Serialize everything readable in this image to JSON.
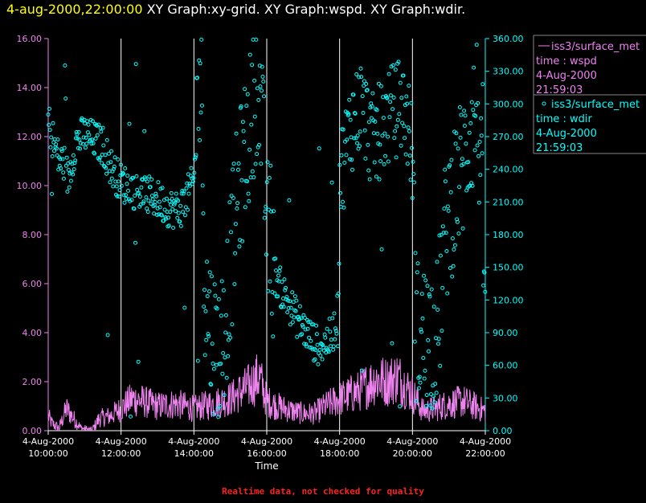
{
  "header": {
    "timestamp": "4-aug-2000,22:00:00",
    "titles": "XY Graph:xy-grid.  XY Graph:wspd.  XY Graph:wdir."
  },
  "footer": {
    "note": "Realtime data, not checked for quality"
  },
  "colors": {
    "wspd": "#ee82ee",
    "wdir": "#00ffff",
    "grid": "#ffffff",
    "header": "#ffff00",
    "note": "#ff2020"
  },
  "chart_data": {
    "type": "line",
    "xlabel": "Time",
    "x_range_hours": [
      10,
      22
    ],
    "x_ticks": [
      {
        "hour": 10,
        "date": "4-Aug-2000",
        "time": "10:00:00"
      },
      {
        "hour": 12,
        "date": "4-Aug-2000",
        "time": "12:00:00"
      },
      {
        "hour": 14,
        "date": "4-Aug-2000",
        "time": "14:00:00"
      },
      {
        "hour": 16,
        "date": "4-Aug-2000",
        "time": "16:00:00"
      },
      {
        "hour": 18,
        "date": "4-Aug-2000",
        "time": "18:00:00"
      },
      {
        "hour": 20,
        "date": "4-Aug-2000",
        "time": "20:00:00"
      },
      {
        "hour": 22,
        "date": "4-Aug-2000",
        "time": "22:00:00"
      }
    ],
    "left_axis": {
      "range": [
        0,
        16
      ],
      "ticks": [
        "0.00",
        "2.00",
        "4.00",
        "6.00",
        "8.00",
        "10.00",
        "12.00",
        "14.00",
        "16.00"
      ]
    },
    "right_axis": {
      "range": [
        0,
        360
      ],
      "ticks": [
        "0.00",
        "30.00",
        "60.00",
        "90.00",
        "120.00",
        "150.00",
        "180.00",
        "210.00",
        "240.00",
        "270.00",
        "300.00",
        "330.00",
        "360.00"
      ]
    },
    "series": [
      {
        "name": "wspd",
        "legend": [
          "iss3/surface_met",
          "time : wspd",
          "4-Aug-2000",
          "21:59:03"
        ],
        "style": "line",
        "axis": "left",
        "keypoints": [
          [
            10.0,
            0.6
          ],
          [
            10.1,
            0.3
          ],
          [
            10.3,
            0.1
          ],
          [
            10.5,
            0.9
          ],
          [
            10.7,
            0.5
          ],
          [
            10.9,
            0.1
          ],
          [
            11.2,
            0.0
          ],
          [
            11.4,
            0.5
          ],
          [
            11.7,
            0.6
          ],
          [
            12.0,
            0.9
          ],
          [
            12.3,
            1.3
          ],
          [
            12.6,
            1.2
          ],
          [
            13.0,
            1.0
          ],
          [
            13.5,
            1.1
          ],
          [
            14.0,
            0.9
          ],
          [
            14.5,
            1.1
          ],
          [
            15.0,
            1.3
          ],
          [
            15.5,
            1.8
          ],
          [
            15.8,
            2.2
          ],
          [
            16.0,
            1.2
          ],
          [
            16.3,
            1.0
          ],
          [
            16.7,
            0.8
          ],
          [
            17.0,
            0.7
          ],
          [
            17.3,
            0.7
          ],
          [
            17.6,
            1.0
          ],
          [
            18.0,
            1.3
          ],
          [
            18.5,
            1.6
          ],
          [
            19.0,
            2.1
          ],
          [
            19.3,
            2.0
          ],
          [
            19.6,
            2.2
          ],
          [
            20.0,
            1.5
          ],
          [
            20.3,
            0.8
          ],
          [
            20.6,
            0.9
          ],
          [
            21.0,
            1.1
          ],
          [
            21.4,
            1.2
          ],
          [
            21.7,
            1.0
          ],
          [
            22.0,
            0.8
          ]
        ]
      },
      {
        "name": "wdir",
        "legend": [
          "iss3/surface_met",
          "time : wdir",
          "4-Aug-2000",
          "21:59:03"
        ],
        "style": "markers",
        "axis": "right",
        "keypoints": [
          [
            10.0,
            285
          ],
          [
            10.15,
            265
          ],
          [
            10.3,
            248
          ],
          [
            10.45,
            245
          ],
          [
            10.55,
            230
          ],
          [
            10.75,
            265
          ],
          [
            11.0,
            272
          ],
          [
            11.2,
            268
          ],
          [
            11.5,
            262
          ],
          [
            11.75,
            240
          ],
          [
            12.0,
            228
          ],
          [
            12.3,
            222
          ],
          [
            12.6,
            218
          ],
          [
            13.0,
            212
          ],
          [
            13.3,
            205
          ],
          [
            13.6,
            202
          ],
          [
            14.0,
            228
          ],
          [
            14.1,
            300
          ],
          [
            14.2,
            330
          ],
          [
            14.3,
            130
          ],
          [
            14.5,
            88
          ],
          [
            14.7,
            72
          ],
          [
            14.85,
            100
          ],
          [
            15.0,
            150
          ],
          [
            15.2,
            215
          ],
          [
            15.4,
            255
          ],
          [
            15.6,
            290
          ],
          [
            15.75,
            330
          ],
          [
            15.9,
            260
          ],
          [
            16.0,
            185
          ],
          [
            16.2,
            145
          ],
          [
            16.4,
            130
          ],
          [
            16.6,
            118
          ],
          [
            16.8,
            105
          ],
          [
            17.0,
            95
          ],
          [
            17.2,
            85
          ],
          [
            17.4,
            78
          ],
          [
            17.6,
            80
          ],
          [
            17.8,
            88
          ],
          [
            17.95,
            108
          ],
          [
            18.0,
            230
          ],
          [
            18.3,
            280
          ],
          [
            18.6,
            300
          ],
          [
            18.9,
            265
          ],
          [
            19.1,
            275
          ],
          [
            19.4,
            290
          ],
          [
            19.7,
            300
          ],
          [
            19.9,
            280
          ],
          [
            20.0,
            250
          ],
          [
            20.1,
            92
          ],
          [
            20.3,
            85
          ],
          [
            20.5,
            88
          ],
          [
            20.7,
            92
          ],
          [
            20.85,
            165
          ],
          [
            21.0,
            200
          ],
          [
            21.2,
            225
          ],
          [
            21.4,
            245
          ],
          [
            21.6,
            280
          ],
          [
            21.8,
            300
          ],
          [
            21.9,
            200
          ],
          [
            22.0,
            130
          ]
        ]
      }
    ]
  }
}
